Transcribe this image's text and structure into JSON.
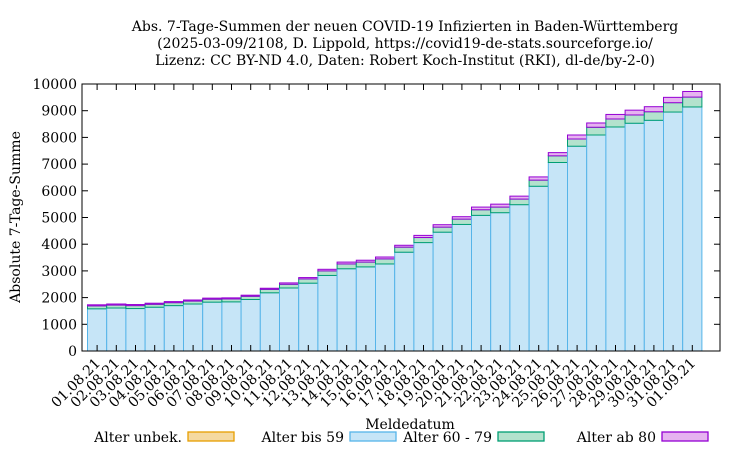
{
  "chart_data": {
    "type": "bar",
    "stacked": true,
    "title": [
      "Abs. 7-Tage-Summen der neuen COVID-19 Infizierten in Baden-Württemberg",
      "(2025-03-09/2108, D. Lippold, https://covid19-de-stats.sourceforge.io/",
      "Lizenz: CC BY-ND 4.0, Daten: Robert Koch-Institut (RKI), dl-de/by-2-0)"
    ],
    "xlabel": "Meldedatum",
    "ylabel": "Absolute 7-Tage-Summe",
    "ylim": [
      0,
      10000
    ],
    "yticks": [
      0,
      1000,
      2000,
      3000,
      4000,
      5000,
      6000,
      7000,
      8000,
      9000,
      10000
    ],
    "categories": [
      "01.08.21",
      "02.08.21",
      "03.08.21",
      "04.08.21",
      "05.08.21",
      "06.08.21",
      "07.08.21",
      "08.08.21",
      "09.08.21",
      "10.08.21",
      "11.08.21",
      "12.08.21",
      "13.08.21",
      "14.08.21",
      "15.08.21",
      "16.08.21",
      "17.08.21",
      "18.08.21",
      "19.08.21",
      "20.08.21",
      "21.08.21",
      "22.08.21",
      "23.08.21",
      "24.08.21",
      "25.08.21",
      "26.08.21",
      "27.08.21",
      "28.08.21",
      "29.08.21",
      "30.08.21",
      "31.08.21",
      "01.09.21"
    ],
    "series": [
      {
        "name": "Alter unbek.",
        "color": "#f5d9a0",
        "stroke": "#e69f00",
        "values": [
          0,
          0,
          0,
          0,
          0,
          0,
          0,
          0,
          0,
          0,
          0,
          0,
          0,
          0,
          0,
          0,
          0,
          0,
          0,
          0,
          0,
          0,
          0,
          0,
          0,
          0,
          0,
          0,
          0,
          0,
          0,
          0
        ]
      },
      {
        "name": "Alter bis 59",
        "color": "#c6e5f7",
        "stroke": "#56b4e9",
        "values": [
          1580,
          1610,
          1590,
          1640,
          1700,
          1760,
          1830,
          1840,
          1930,
          2180,
          2360,
          2540,
          2830,
          3080,
          3150,
          3260,
          3700,
          4060,
          4450,
          4740,
          5080,
          5180,
          5480,
          6170,
          7060,
          7670,
          8090,
          8390,
          8530,
          8640,
          8950,
          9140
        ]
      },
      {
        "name": "Alter 60 - 79",
        "color": "#b3e2cd",
        "stroke": "#009e73",
        "values": [
          110,
          110,
          110,
          110,
          110,
          110,
          110,
          110,
          120,
          130,
          140,
          160,
          170,
          180,
          180,
          190,
          190,
          190,
          190,
          200,
          210,
          210,
          210,
          230,
          250,
          270,
          290,
          300,
          310,
          320,
          350,
          370
        ]
      },
      {
        "name": "Alter ab 80",
        "color": "#e6b3f0",
        "stroke": "#9400d3",
        "values": [
          40,
          40,
          40,
          40,
          40,
          40,
          40,
          40,
          40,
          40,
          50,
          50,
          60,
          70,
          70,
          70,
          70,
          80,
          90,
          90,
          100,
          110,
          110,
          120,
          120,
          150,
          160,
          170,
          180,
          190,
          200,
          210
        ]
      }
    ]
  }
}
